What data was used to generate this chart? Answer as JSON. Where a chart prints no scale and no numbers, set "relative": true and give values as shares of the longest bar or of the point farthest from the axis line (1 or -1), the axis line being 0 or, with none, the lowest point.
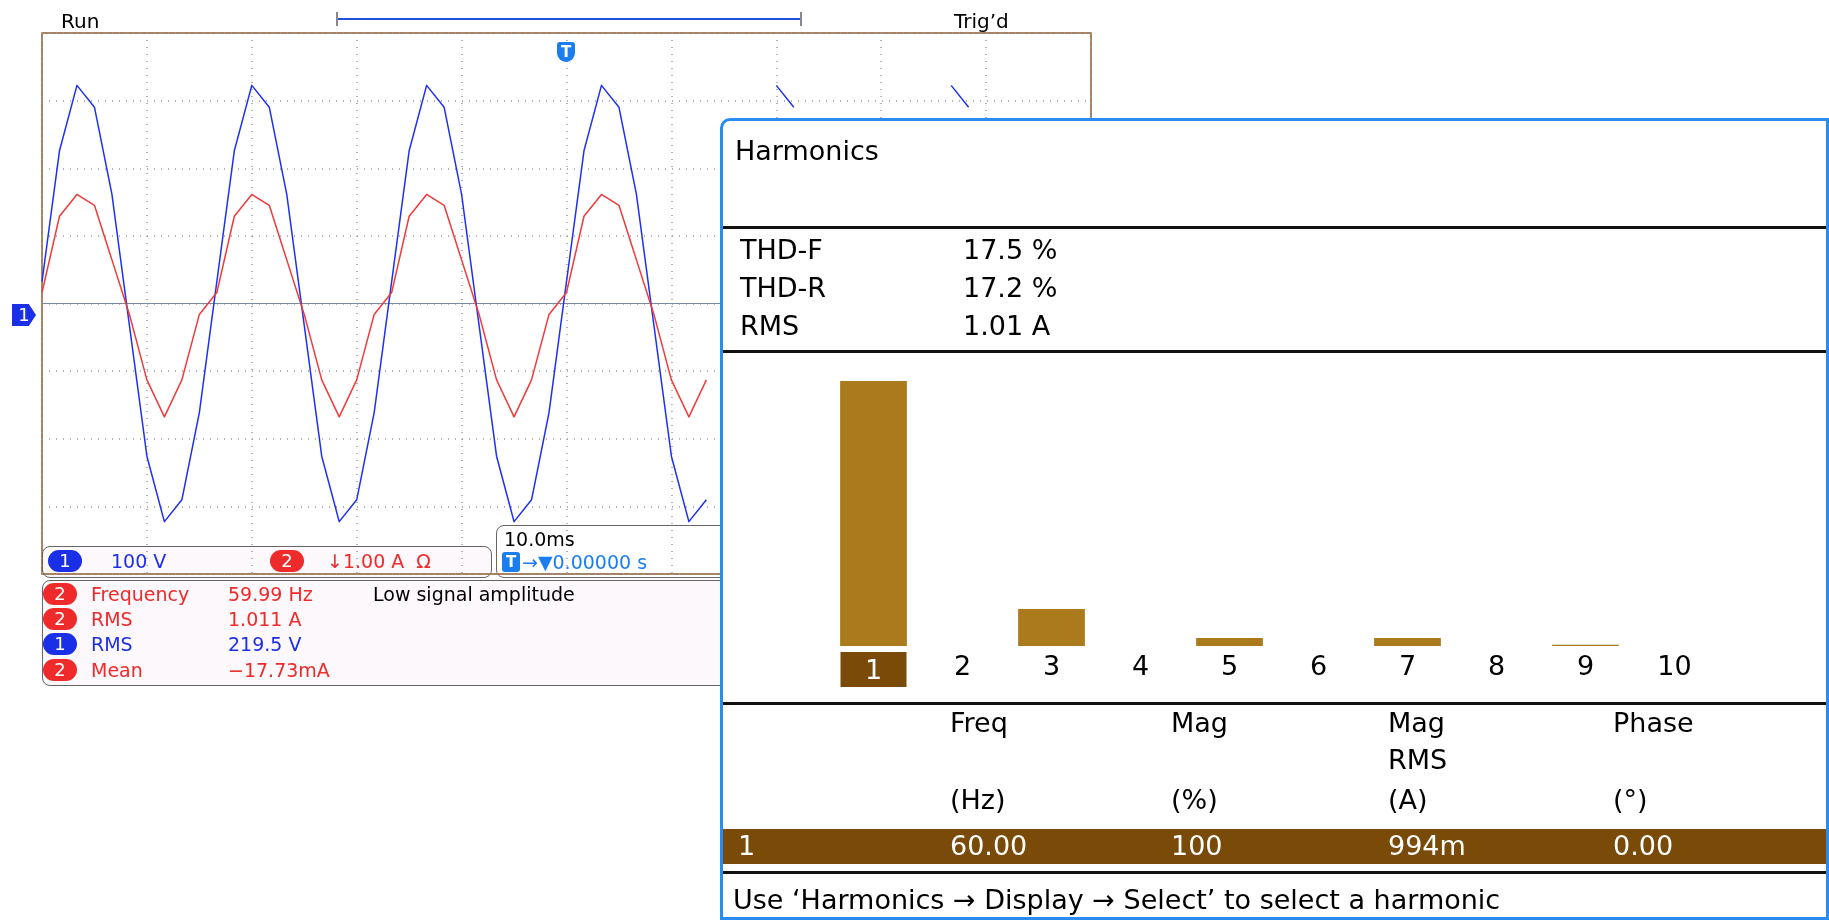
{
  "chart_data": [
    {
      "type": "line",
      "relative": true,
      "grid": true,
      "marker": "none",
      "categories": [
        null,
        null,
        null,
        null,
        null,
        null,
        null,
        null,
        null,
        null,
        null,
        null,
        null,
        null,
        null,
        null,
        null,
        null,
        null,
        null,
        null,
        null,
        null,
        null,
        null,
        null,
        null,
        null,
        null,
        null,
        null,
        null,
        null,
        null,
        null,
        null,
        null,
        null,
        null,
        null,
        null,
        null,
        null,
        null,
        null,
        null,
        null,
        null,
        null,
        null,
        null,
        null,
        null,
        null,
        null,
        null,
        null,
        null,
        null,
        null,
        null
      ],
      "series": [
        {
          "color": "#2030f0",
          "values": [
            0.1,
            0.7,
            1,
            0.9,
            0.5,
            -0.1,
            -0.7,
            -1,
            -0.9,
            -0.5,
            0.1,
            0.7,
            1,
            0.9,
            0.5,
            -0.1,
            -0.7,
            -1,
            -0.9,
            -0.5,
            0.1,
            0.7,
            1,
            0.9,
            0.5,
            -0.1,
            -0.7,
            -1,
            -0.9,
            -0.5,
            0.1,
            0.7,
            1,
            0.9,
            0.5,
            -0.1,
            -0.7,
            -1,
            -0.9,
            null,
            null,
            null,
            1,
            0.9,
            null,
            null,
            null,
            null,
            null,
            null,
            null,
            null,
            1,
            0.9,
            null,
            null,
            null,
            null,
            null,
            null,
            null
          ]
        },
        {
          "color": "#f03a3a",
          "values": [
            0.05,
            0.4,
            0.5,
            0.45,
            0.2,
            -0.05,
            -0.35,
            -0.52,
            -0.35,
            -0.05,
            0.05,
            0.4,
            0.5,
            0.45,
            0.2,
            -0.05,
            -0.35,
            -0.52,
            -0.35,
            -0.05,
            0.05,
            0.4,
            0.5,
            0.45,
            0.2,
            -0.05,
            -0.35,
            -0.52,
            -0.35,
            -0.05,
            0.05,
            0.4,
            0.5,
            0.45,
            0.2,
            -0.05,
            -0.35,
            -0.52,
            -0.35,
            null,
            null,
            null,
            null,
            null,
            null,
            null,
            null,
            null,
            null,
            null,
            null,
            null,
            null,
            null,
            null,
            null,
            null,
            null,
            null,
            null,
            null
          ]
        }
      ],
      "annotations": [
        "Run",
        "Trig’d",
        "1",
        "T",
        "1",
        "100 V",
        "2",
        "↓1.00 A  Ω",
        "10.0ms",
        "T",
        "→▼0.00000 s",
        "2",
        "Frequency",
        "59.99 Hz",
        "Low signal amplitude",
        "2",
        "RMS",
        "1.011 A",
        "1",
        "RMS",
        "219.5 V",
        "2",
        "Mean",
        "−17.73mA"
      ]
    },
    {
      "type": "bar",
      "relative": true,
      "title": "Harmonics",
      "color": "#ab7a1d",
      "categories": [
        "1",
        "2",
        "3",
        "4",
        "5",
        "6",
        "7",
        "8",
        "9",
        "10"
      ],
      "values": [
        1,
        0,
        0.14,
        0,
        0.03,
        0,
        0.03,
        0,
        0.005,
        0
      ],
      "annotations": [
        "THD-F",
        "17.5 %",
        "THD-R",
        "17.2 %",
        "RMS",
        "1.01 A",
        "Freq",
        "Mag",
        "Mag",
        "RMS",
        "Phase",
        "(Hz)",
        "(%)",
        "(A)",
        "(°)",
        "1",
        "60.00",
        "100",
        "994m",
        "0.00",
        "Use ‘Harmonics → Display → Select’ to select a harmonic"
      ]
    }
  ]
}
